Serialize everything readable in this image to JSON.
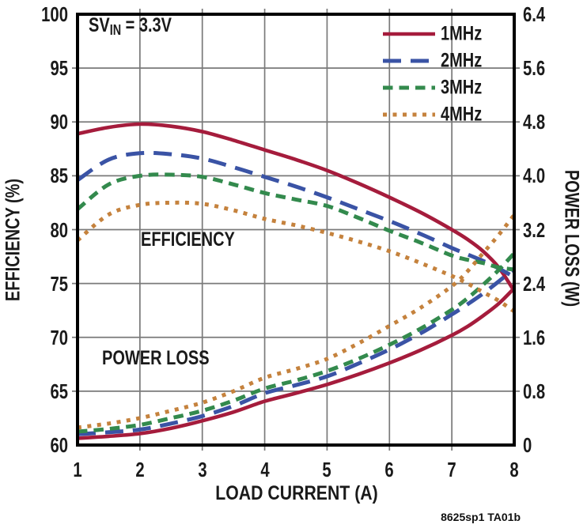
{
  "annotation": {
    "prefix": "SV",
    "sub": "IN",
    "rest": " = 3.3V"
  },
  "plot_labels": {
    "efficiency": "EFFICIENCY",
    "power_loss": "POWER LOSS"
  },
  "caption": "8625sp1 TA01b",
  "axes": {
    "left": {
      "title": "EFFICIENCY (%)",
      "ticks": [
        "100",
        "95",
        "90",
        "85",
        "80",
        "75",
        "70",
        "65",
        "60"
      ]
    },
    "right": {
      "title": "POWER LOSS (W)",
      "ticks": [
        "6.4",
        "5.6",
        "4.8",
        "4.0",
        "3.2",
        "2.4",
        "1.6",
        "0.8",
        "0"
      ]
    },
    "x": {
      "title": "LOAD CURRENT (A)",
      "ticks": [
        "1",
        "2",
        "3",
        "4",
        "5",
        "6",
        "7",
        "8"
      ]
    }
  },
  "colors": {
    "grid": "#7a7a7a",
    "frame": "#000000",
    "text": "#1a1a1a"
  },
  "chart_data": {
    "type": "line",
    "title": "",
    "xlabel": "LOAD CURRENT (A)",
    "y_left_label": "EFFICIENCY (%)",
    "y_right_label": "POWER LOSS (W)",
    "x_range": [
      1,
      8
    ],
    "y_left_range": [
      60,
      100
    ],
    "y_right_range": [
      0,
      6.4
    ],
    "grid": true,
    "legend_position": "top-right",
    "condition": "SVIN = 3.3V",
    "x": [
      1,
      1.5,
      2,
      2.5,
      3,
      3.5,
      4,
      4.5,
      5,
      5.5,
      6,
      6.5,
      7,
      7.25,
      7.5,
      7.75,
      8
    ],
    "series": [
      {
        "name": "1MHz",
        "color": "#A51C3C",
        "dash": "solid",
        "efficiency": [
          88.9,
          89.5,
          89.8,
          89.6,
          89.1,
          88.3,
          87.4,
          86.5,
          85.5,
          84.3,
          83.0,
          81.6,
          80.0,
          79.1,
          78.0,
          76.5,
          74.3
        ],
        "power_loss": [
          0.1,
          0.13,
          0.17,
          0.25,
          0.36,
          0.49,
          0.65,
          0.77,
          0.9,
          1.05,
          1.22,
          1.41,
          1.63,
          1.76,
          1.92,
          2.1,
          2.33
        ]
      },
      {
        "name": "2MHz",
        "color": "#3A53A5",
        "dash": "long-dash",
        "efficiency": [
          84.6,
          86.5,
          87.1,
          87.0,
          86.6,
          85.8,
          84.9,
          84.0,
          83.0,
          81.9,
          80.8,
          79.6,
          78.3,
          77.7,
          77.1,
          76.4,
          75.6
        ],
        "power_loss": [
          0.16,
          0.19,
          0.23,
          0.32,
          0.43,
          0.58,
          0.77,
          0.89,
          1.02,
          1.21,
          1.42,
          1.66,
          1.94,
          2.09,
          2.25,
          2.43,
          2.62
        ]
      },
      {
        "name": "3MHz",
        "color": "#338A4D",
        "dash": "dash",
        "efficiency": [
          81.9,
          84.2,
          85.0,
          85.1,
          84.9,
          84.2,
          83.4,
          82.8,
          82.2,
          81.1,
          79.9,
          78.8,
          77.6,
          77.2,
          76.9,
          76.5,
          76.3
        ],
        "power_loss": [
          0.2,
          0.24,
          0.3,
          0.4,
          0.51,
          0.66,
          0.84,
          0.96,
          1.1,
          1.28,
          1.49,
          1.73,
          2.01,
          2.18,
          2.38,
          2.6,
          2.85
        ]
      },
      {
        "name": "4MHz",
        "color": "#C5823D",
        "dash": "dot",
        "efficiency": [
          79.0,
          81.4,
          82.3,
          82.5,
          82.4,
          81.8,
          81.0,
          80.4,
          79.7,
          78.9,
          78.0,
          76.9,
          75.7,
          75.0,
          74.2,
          73.4,
          72.4
        ],
        "power_loss": [
          0.26,
          0.32,
          0.4,
          0.51,
          0.63,
          0.8,
          1.0,
          1.13,
          1.28,
          1.51,
          1.77,
          2.04,
          2.36,
          2.58,
          2.85,
          3.12,
          3.42
        ]
      }
    ]
  }
}
